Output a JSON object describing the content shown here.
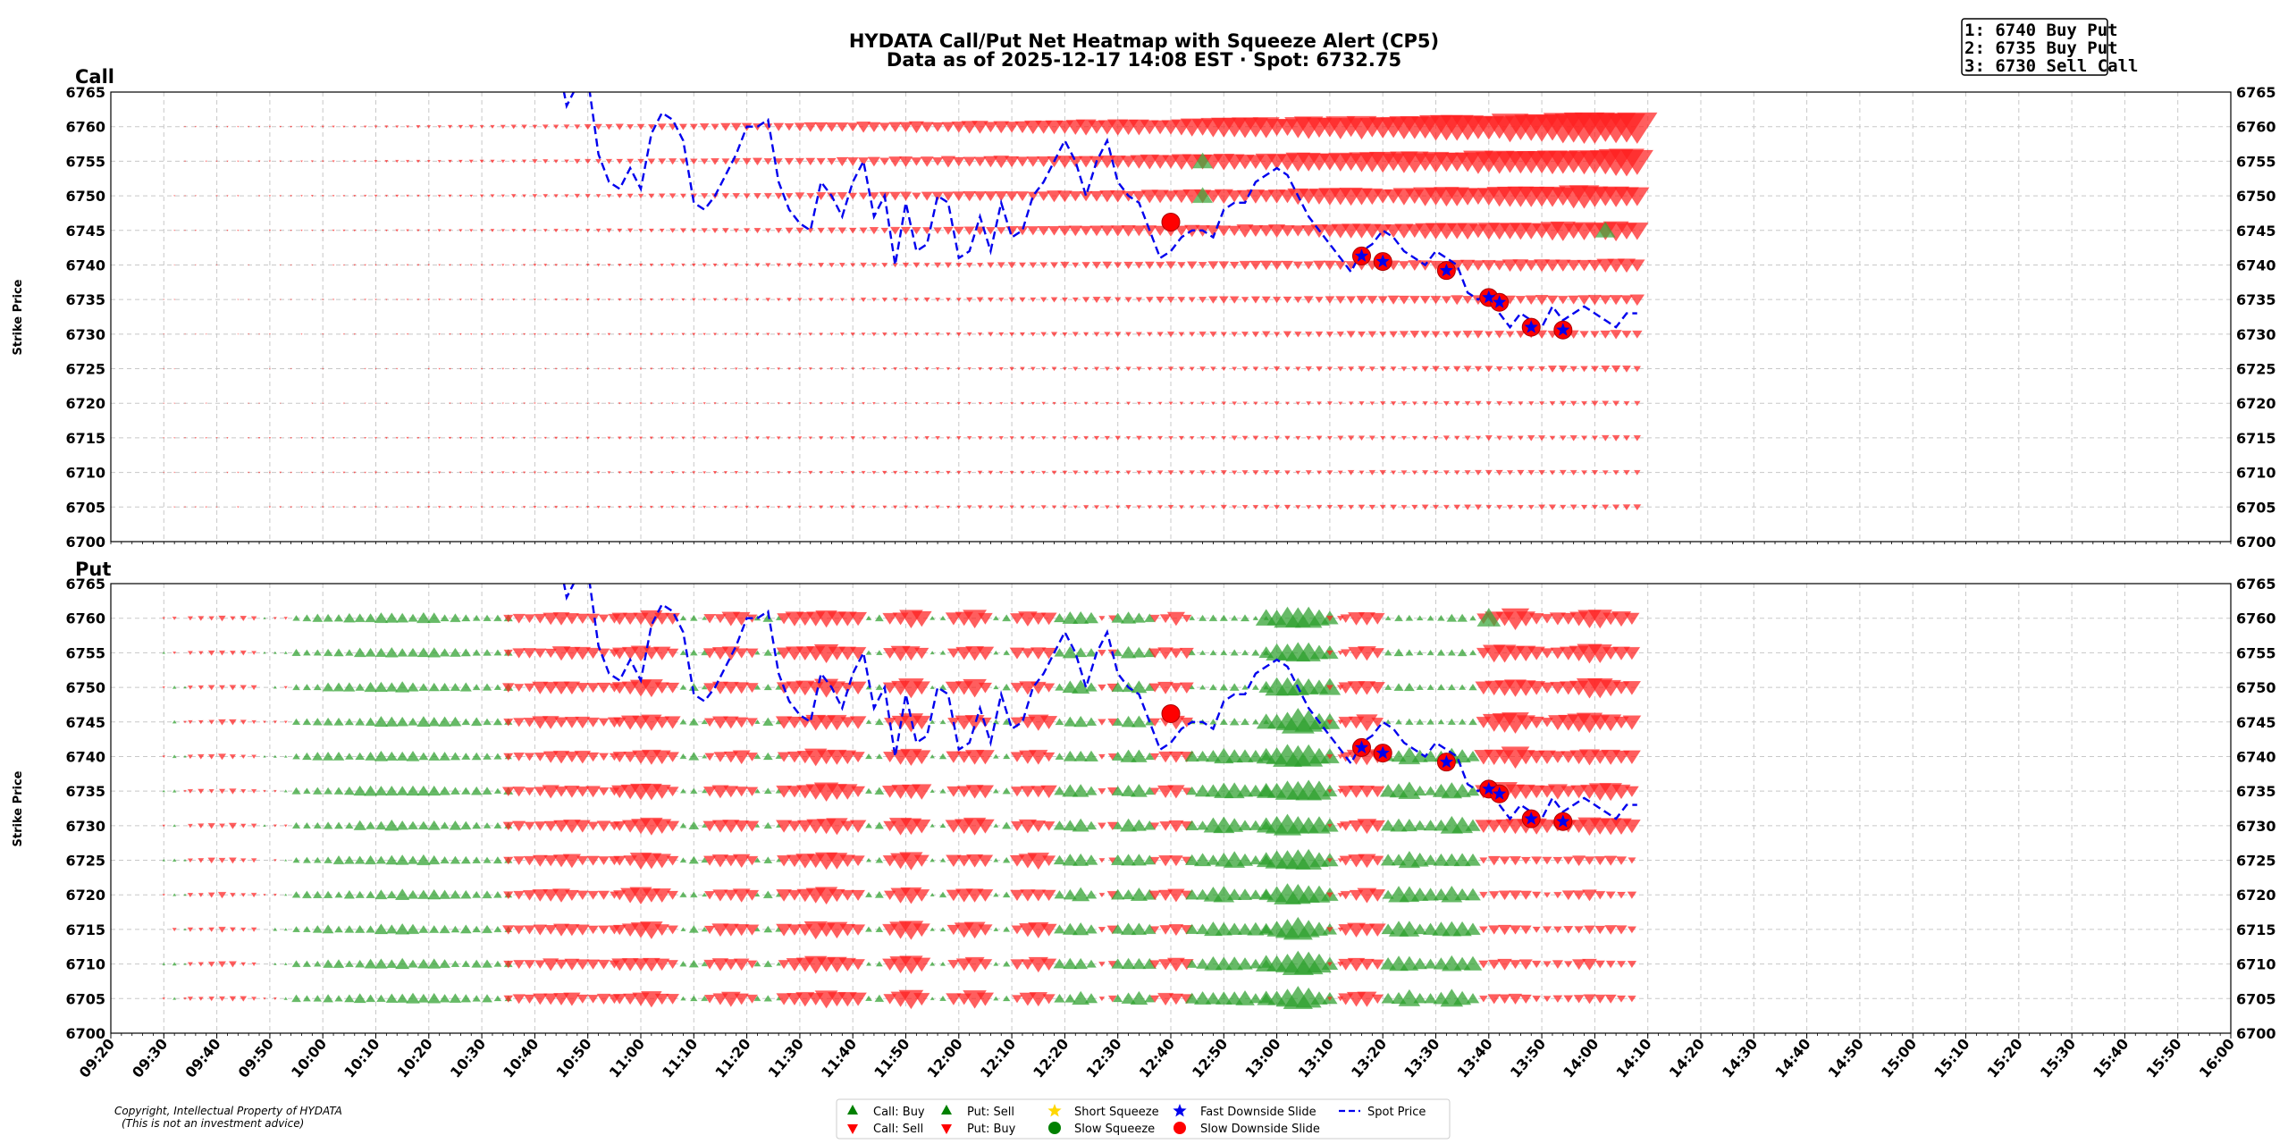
{
  "title_line1": "HYDATA Call/Put Net Heatmap with Squeeze Alert (CP5)",
  "title_line2": "Data as of 2025-12-17 14:08 EST · Spot: 6732.75",
  "alerts": [
    "1: 6740 Buy Put",
    "2: 6735 Buy Put",
    "3: 6730 Sell Call"
  ],
  "copyright": [
    "Copyright, Intellectual Property of HYDATA",
    "(This is not an investment advice)"
  ],
  "colors": {
    "buy_green": "#2ca02c",
    "sell_red": "#ff2020",
    "spot_blue": "#0000ee",
    "squeeze_yellow": "#ffd700",
    "slow_green": "#008000",
    "slow_red": "#ff0000",
    "grid": "#c8c8c8"
  },
  "legend": [
    {
      "label": "Call: Buy",
      "icon": "triangle-up-green"
    },
    {
      "label": "Call: Sell",
      "icon": "triangle-down-red"
    },
    {
      "label": "Put: Sell",
      "icon": "triangle-up-green"
    },
    {
      "label": "Put: Buy",
      "icon": "triangle-down-red"
    },
    {
      "label": "Short Squeeze",
      "icon": "star-yellow"
    },
    {
      "label": "Slow Squeeze",
      "icon": "circle-green"
    },
    {
      "label": "Fast Downside Slide",
      "icon": "star-blue"
    },
    {
      "label": "Slow Downside Slide",
      "icon": "circle-red"
    },
    {
      "label": "Spot Price",
      "icon": "dashed-line-blue"
    }
  ],
  "chart_data": {
    "type": "scatter",
    "ylabel": "Strike Price",
    "ylim": [
      6700,
      6765
    ],
    "yticks": [
      6700,
      6705,
      6710,
      6715,
      6720,
      6725,
      6730,
      6735,
      6740,
      6745,
      6750,
      6755,
      6760,
      6765
    ],
    "xlim": [
      "09:20",
      "16:00"
    ],
    "xticks": [
      "09:20",
      "09:30",
      "09:40",
      "09:50",
      "10:00",
      "10:10",
      "10:20",
      "10:30",
      "10:40",
      "10:50",
      "11:00",
      "11:10",
      "11:20",
      "11:30",
      "11:40",
      "11:50",
      "12:00",
      "12:10",
      "12:20",
      "12:30",
      "12:40",
      "12:50",
      "13:00",
      "13:10",
      "13:20",
      "13:30",
      "13:40",
      "13:50",
      "14:00",
      "14:10",
      "14:20",
      "14:30",
      "14:40",
      "14:50",
      "15:00",
      "15:10",
      "15:20",
      "15:30",
      "15:40",
      "15:50",
      "16:00"
    ],
    "panels": [
      {
        "name": "Call",
        "summary": "Call flow mostly net selling (red down-triangles), growing with strike and time; large sells at 6745-6760 after 13:00",
        "big_markers": [
          {
            "time": "12:46",
            "strike": 6755,
            "dir": "up"
          },
          {
            "time": "12:46",
            "strike": 6750,
            "dir": "up"
          },
          {
            "time": "14:02",
            "strike": 6745,
            "dir": "up"
          }
        ]
      },
      {
        "name": "Put",
        "summary": "Put flow alternates between sells (green up-triangles) and buys (red down-triangles) across time blocks",
        "big_markers": [
          {
            "time": "13:40",
            "strike": 6760,
            "dir": "up"
          }
        ]
      }
    ],
    "slow_downside_slide": [
      {
        "time": "12:40",
        "price": 6746.2
      },
      {
        "time": "13:16",
        "price": 6741.3
      },
      {
        "time": "13:20",
        "price": 6740.5
      },
      {
        "time": "13:32",
        "price": 6739.2
      },
      {
        "time": "13:40",
        "price": 6735.3
      },
      {
        "time": "13:42",
        "price": 6734.6
      },
      {
        "time": "13:48",
        "price": 6731.0
      },
      {
        "time": "13:54",
        "price": 6730.6
      }
    ],
    "fast_downside_slide": [
      {
        "time": "13:16",
        "price": 6741.3
      },
      {
        "time": "13:20",
        "price": 6740.5
      },
      {
        "time": "13:32",
        "price": 6739.2
      },
      {
        "time": "13:40",
        "price": 6735.3
      },
      {
        "time": "13:42",
        "price": 6734.6
      },
      {
        "time": "13:48",
        "price": 6731.0
      },
      {
        "time": "13:54",
        "price": 6730.6
      }
    ],
    "spot_price": {
      "times": [
        "10:45",
        "10:46",
        "10:48",
        "10:50",
        "10:52",
        "10:54",
        "10:56",
        "10:58",
        "11:00",
        "11:02",
        "11:04",
        "11:06",
        "11:08",
        "11:10",
        "11:12",
        "11:14",
        "11:16",
        "11:18",
        "11:20",
        "11:22",
        "11:24",
        "11:26",
        "11:28",
        "11:30",
        "11:32",
        "11:34",
        "11:36",
        "11:38",
        "11:40",
        "11:42",
        "11:44",
        "11:46",
        "11:48",
        "11:50",
        "11:52",
        "11:54",
        "11:56",
        "11:58",
        "12:00",
        "12:02",
        "12:04",
        "12:06",
        "12:08",
        "12:10",
        "12:12",
        "12:14",
        "12:16",
        "12:18",
        "12:20",
        "12:22",
        "12:24",
        "12:26",
        "12:28",
        "12:30",
        "12:32",
        "12:34",
        "12:36",
        "12:38",
        "12:40",
        "12:42",
        "12:44",
        "12:46",
        "12:48",
        "12:50",
        "12:52",
        "12:54",
        "12:56",
        "12:58",
        "13:00",
        "13:02",
        "13:04",
        "13:06",
        "13:08",
        "13:10",
        "13:12",
        "13:14",
        "13:16",
        "13:18",
        "13:20",
        "13:22",
        "13:24",
        "13:26",
        "13:28",
        "13:30",
        "13:32",
        "13:34",
        "13:36",
        "13:38",
        "13:40",
        "13:42",
        "13:44",
        "13:46",
        "13:48",
        "13:50",
        "13:52",
        "13:54",
        "13:56",
        "13:58",
        "14:00",
        "14:02",
        "14:04",
        "14:06",
        "14:08"
      ],
      "values": [
        6767,
        6763,
        6766,
        6767,
        6756,
        6752,
        6751,
        6754,
        6751,
        6759,
        6762,
        6761,
        6758,
        6749,
        6748,
        6750,
        6753,
        6756,
        6760,
        6760,
        6761,
        6752,
        6748,
        6746,
        6745,
        6752,
        6750,
        6747,
        6752,
        6755,
        6747,
        6750,
        6740,
        6749,
        6742,
        6743,
        6750,
        6749,
        6741,
        6742,
        6747,
        6742,
        6749,
        6744,
        6745,
        6750,
        6752,
        6755,
        6758,
        6755,
        6750,
        6755,
        6758,
        6752,
        6750,
        6749,
        6745,
        6741,
        6742,
        6744,
        6745,
        6745,
        6744,
        6748,
        6749,
        6749,
        6752,
        6753,
        6754,
        6753,
        6750,
        6747,
        6745,
        6743,
        6741,
        6739,
        6742,
        6743,
        6745,
        6744,
        6742,
        6741,
        6740,
        6742,
        6741,
        6740,
        6736,
        6735,
        6736,
        6733,
        6731,
        6733,
        6732,
        6731,
        6734,
        6732,
        6733,
        6734,
        6733,
        6732,
        6731,
        6733,
        6733
      ]
    }
  }
}
